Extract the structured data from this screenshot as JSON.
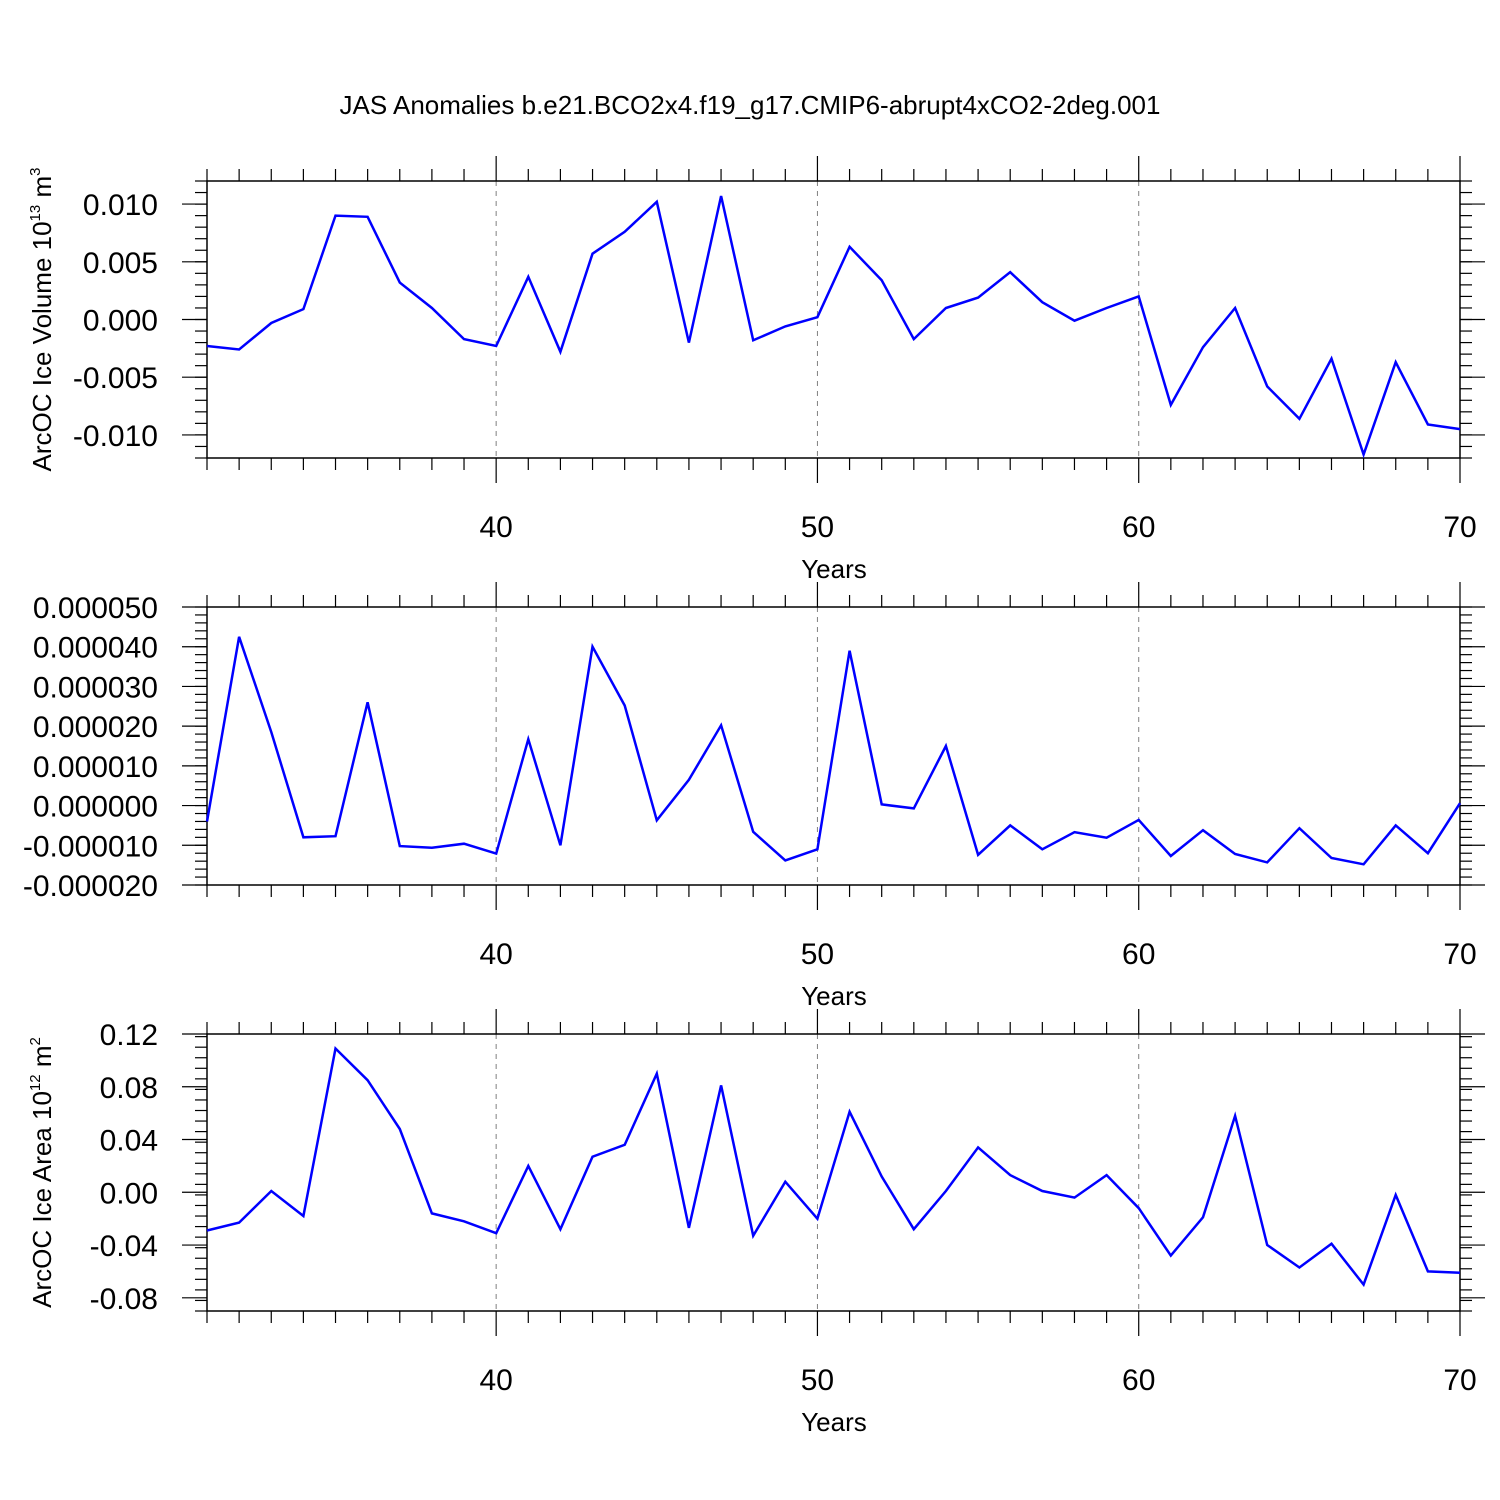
{
  "title": "JAS Anomalies b.e21.BCO2x4.f19_g17.CMIP6-abrupt4xCO2-2deg.001",
  "colors": {
    "line": "#0000ff",
    "axes": "#000000",
    "grid": "#808080"
  },
  "chart_data": [
    {
      "type": "line",
      "xlabel": "Years",
      "ylabel": {
        "main": "ArcOC Ice Volume 10",
        "exp": "13",
        "unit": " m",
        "unit_exp": "3"
      },
      "xlim": [
        31,
        70
      ],
      "ylim": [
        -0.012,
        0.012
      ],
      "x_major_ticks": [
        40,
        50,
        60,
        70
      ],
      "x_tick_labels": [
        "40",
        "50",
        "60",
        "70"
      ],
      "y_major_ticks": [
        -0.01,
        -0.005,
        0,
        0.005,
        0.01
      ],
      "y_tick_labels": [
        "-0.010",
        "-0.005",
        "0.000",
        "0.005",
        "0.010"
      ],
      "y_minor_step": 0.001,
      "vertical_grid": [
        40,
        50,
        60
      ],
      "x": [
        31,
        32,
        33,
        34,
        35,
        36,
        37,
        38,
        39,
        40,
        41,
        42,
        43,
        44,
        45,
        46,
        47,
        48,
        49,
        50,
        51,
        52,
        53,
        54,
        55,
        56,
        57,
        58,
        59,
        60,
        61,
        62,
        63,
        64,
        65,
        66,
        67,
        68,
        69,
        70
      ],
      "values": [
        -0.0023,
        -0.0026,
        -0.0003,
        0.0009,
        0.009,
        0.0089,
        0.0032,
        0.001,
        -0.0017,
        -0.0023,
        0.0037,
        -0.0028,
        0.0057,
        0.0076,
        0.0102,
        -0.002,
        0.0107,
        -0.0018,
        -0.0006,
        0.0002,
        0.0063,
        0.0034,
        -0.0017,
        0.001,
        0.0019,
        0.0041,
        0.0015,
        -0.0001,
        0.001,
        0.002,
        -0.0074,
        -0.0024,
        0.001,
        -0.0058,
        -0.0086,
        -0.0034,
        -0.0117,
        -0.0037,
        -0.0091,
        -0.0095
      ]
    },
    {
      "type": "line",
      "xlabel": "Years",
      "ylabel": null,
      "xlim": [
        31,
        70
      ],
      "ylim": [
        -2e-05,
        5e-05
      ],
      "x_major_ticks": [
        40,
        50,
        60,
        70
      ],
      "x_tick_labels": [
        "40",
        "50",
        "60",
        "70"
      ],
      "y_major_ticks": [
        -2e-05,
        -1e-05,
        0,
        1e-05,
        2e-05,
        3e-05,
        4e-05,
        5e-05
      ],
      "y_tick_labels": [
        "-0.000020",
        "-0.000010",
        "0.000000",
        "0.000010",
        "0.000020",
        "0.000030",
        "0.000040",
        "0.000050"
      ],
      "y_minor_step": 2e-06,
      "vertical_grid": [
        40,
        50,
        60
      ],
      "x": [
        31,
        32,
        33,
        34,
        35,
        36,
        37,
        38,
        39,
        40,
        41,
        42,
        43,
        44,
        45,
        46,
        47,
        48,
        49,
        50,
        51,
        52,
        53,
        54,
        55,
        56,
        57,
        58,
        59,
        60,
        61,
        62,
        63,
        64,
        65,
        66,
        67,
        68,
        69,
        70
      ],
      "values": [
        -4e-06,
        4.25e-05,
        1.85e-05,
        -8e-06,
        -7.7e-06,
        2.6e-05,
        -1.02e-05,
        -1.06e-05,
        -9.6e-06,
        -1.21e-05,
        1.67e-05,
        -1e-05,
        4e-05,
        2.52e-05,
        -3.7e-06,
        6.5e-06,
        2.02e-05,
        -6.6e-06,
        -1.38e-05,
        -1.1e-05,
        3.9e-05,
        3e-07,
        -7e-07,
        1.5e-05,
        -1.24e-05,
        -5e-06,
        -1.1e-05,
        -6.7e-06,
        -8.1e-06,
        -3.6e-06,
        -1.27e-05,
        -6.2e-06,
        -1.22e-05,
        -1.43e-05,
        -5.7e-06,
        -1.32e-05,
        -1.48e-05,
        -5e-06,
        -1.2e-05,
        6e-07
      ]
    },
    {
      "type": "line",
      "xlabel": "Years",
      "ylabel": {
        "main": "ArcOC Ice Area 10",
        "exp": "12",
        "unit": " m",
        "unit_exp": "2"
      },
      "xlim": [
        31,
        70
      ],
      "ylim": [
        -0.09,
        0.12
      ],
      "x_major_ticks": [
        40,
        50,
        60,
        70
      ],
      "x_tick_labels": [
        "40",
        "50",
        "60",
        "70"
      ],
      "y_major_ticks": [
        -0.08,
        -0.04,
        0,
        0.04,
        0.08,
        0.12
      ],
      "y_tick_labels": [
        "-0.08",
        "-0.04",
        "0.00",
        "0.04",
        "0.08",
        "0.12"
      ],
      "y_minor_step": 0.008,
      "vertical_grid": [
        40,
        50,
        60
      ],
      "x": [
        31,
        32,
        33,
        34,
        35,
        36,
        37,
        38,
        39,
        40,
        41,
        42,
        43,
        44,
        45,
        46,
        47,
        48,
        49,
        50,
        51,
        52,
        53,
        54,
        55,
        56,
        57,
        58,
        59,
        60,
        61,
        62,
        63,
        64,
        65,
        66,
        67,
        68,
        69,
        70
      ],
      "values": [
        -0.029,
        -0.023,
        0.001,
        -0.018,
        0.109,
        0.085,
        0.048,
        -0.016,
        -0.022,
        -0.031,
        0.02,
        -0.028,
        0.027,
        0.036,
        0.09,
        -0.027,
        0.081,
        -0.033,
        0.008,
        -0.02,
        0.061,
        0.012,
        -0.028,
        0.001,
        0.034,
        0.013,
        0.001,
        -0.004,
        0.013,
        -0.012,
        -0.048,
        -0.019,
        0.058,
        -0.04,
        -0.057,
        -0.039,
        -0.07,
        -0.002,
        -0.06,
        -0.061
      ]
    }
  ]
}
